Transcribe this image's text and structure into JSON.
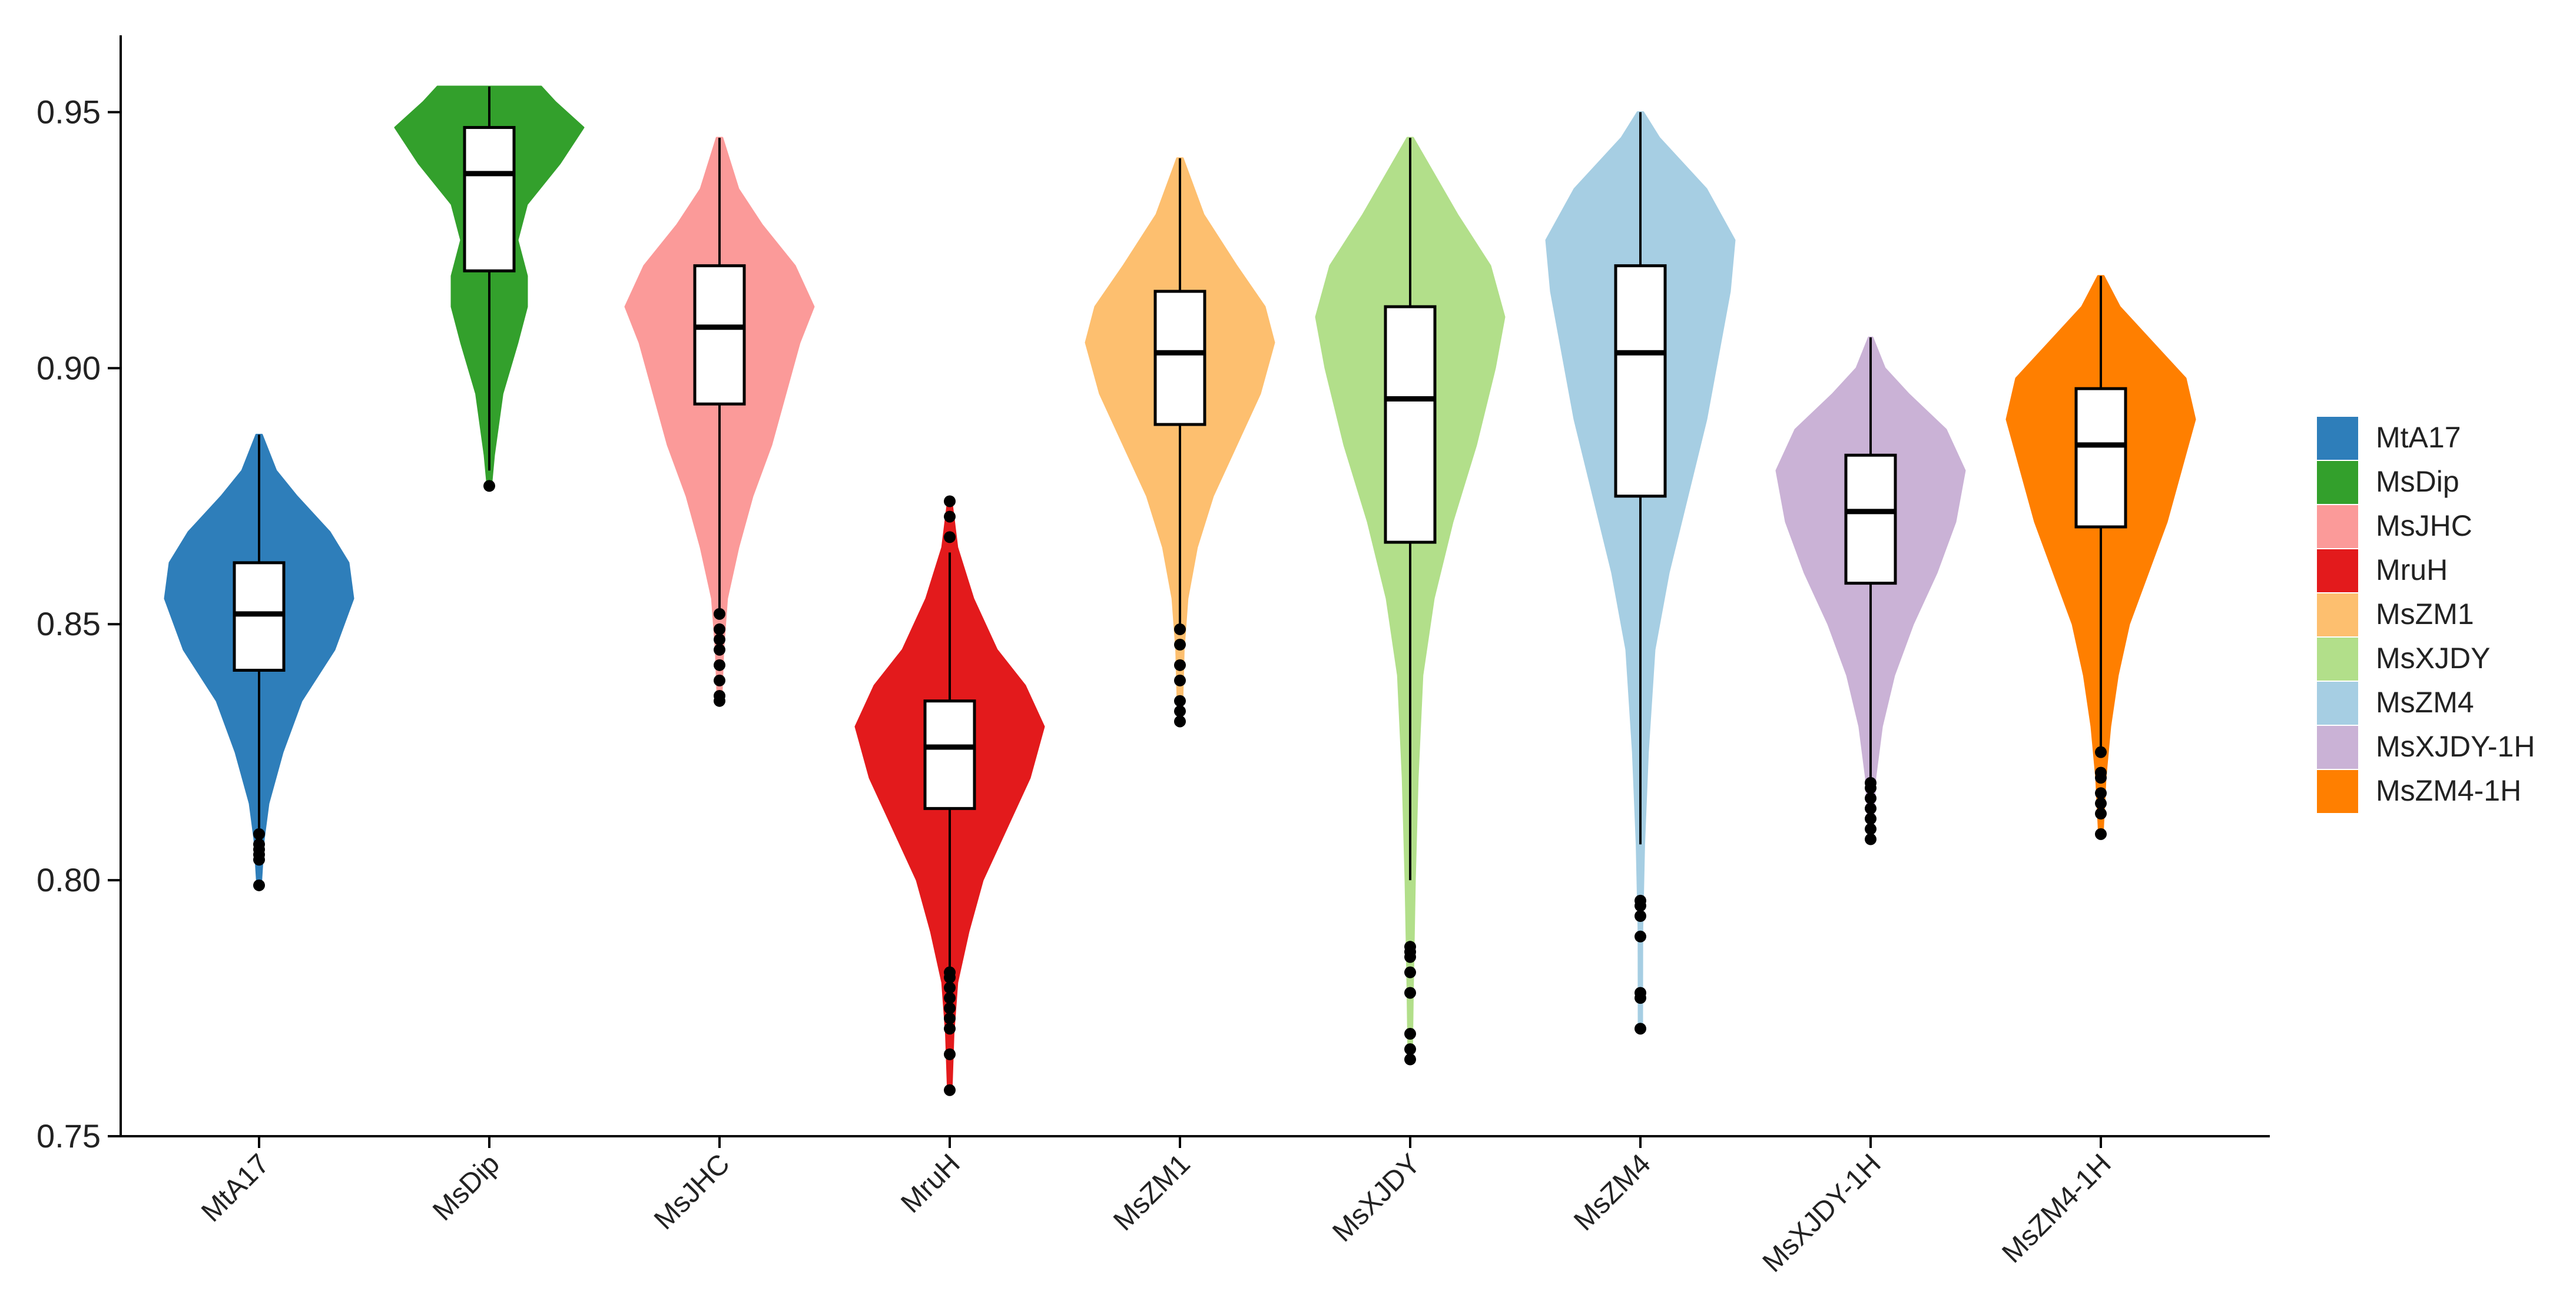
{
  "chart_data": {
    "type": "violin",
    "title": "",
    "xlabel": "",
    "ylabel": "",
    "ylim": [
      0.75,
      0.965
    ],
    "yticks": [
      0.75,
      0.8,
      0.85,
      0.9,
      0.95
    ],
    "ytick_labels": [
      "0.75",
      "0.80",
      "0.85",
      "0.90",
      "0.95"
    ],
    "grid": false,
    "legend_position": "right",
    "categories": [
      "MtA17",
      "MsDip",
      "MsJHC",
      "MruH",
      "MsZM1",
      "MsXJDY",
      "MsZM4",
      "MsXJDY-1H",
      "MsZM4-1H"
    ],
    "series": [
      {
        "name": "MtA17",
        "color": "#2E7EBA",
        "min": 0.799,
        "max": 0.887,
        "q1": 0.841,
        "median": 0.852,
        "q3": 0.862,
        "whisker_low": 0.81,
        "whisker_high": 0.887,
        "outliers": [
          0.799,
          0.804,
          0.805,
          0.806,
          0.807,
          0.809
        ],
        "density": [
          [
            0.799,
            0.02
          ],
          [
            0.808,
            0.05
          ],
          [
            0.815,
            0.1
          ],
          [
            0.825,
            0.25
          ],
          [
            0.835,
            0.45
          ],
          [
            0.845,
            0.8
          ],
          [
            0.855,
            1.0
          ],
          [
            0.862,
            0.95
          ],
          [
            0.868,
            0.75
          ],
          [
            0.875,
            0.4
          ],
          [
            0.88,
            0.18
          ],
          [
            0.887,
            0.03
          ]
        ]
      },
      {
        "name": "MsDip",
        "color": "#33A02C",
        "min": 0.877,
        "max": 0.955,
        "q1": 0.919,
        "median": 0.938,
        "q3": 0.947,
        "whisker_low": 0.88,
        "whisker_high": 0.955,
        "outliers": [
          0.877
        ],
        "density": [
          [
            0.877,
            0.02
          ],
          [
            0.883,
            0.05
          ],
          [
            0.895,
            0.14
          ],
          [
            0.905,
            0.3
          ],
          [
            0.912,
            0.4
          ],
          [
            0.918,
            0.4
          ],
          [
            0.925,
            0.3
          ],
          [
            0.932,
            0.4
          ],
          [
            0.94,
            0.75
          ],
          [
            0.947,
            1.0
          ],
          [
            0.952,
            0.7
          ],
          [
            0.955,
            0.55
          ]
        ]
      },
      {
        "name": "MsJHC",
        "color": "#FB9A99",
        "min": 0.835,
        "max": 0.945,
        "q1": 0.893,
        "median": 0.908,
        "q3": 0.92,
        "whisker_low": 0.853,
        "whisker_high": 0.945,
        "outliers": [
          0.835,
          0.836,
          0.839,
          0.842,
          0.845,
          0.847,
          0.849,
          0.852
        ],
        "density": [
          [
            0.835,
            0.02
          ],
          [
            0.845,
            0.04
          ],
          [
            0.855,
            0.08
          ],
          [
            0.865,
            0.2
          ],
          [
            0.875,
            0.35
          ],
          [
            0.885,
            0.55
          ],
          [
            0.895,
            0.7
          ],
          [
            0.905,
            0.85
          ],
          [
            0.912,
            1.0
          ],
          [
            0.92,
            0.8
          ],
          [
            0.928,
            0.45
          ],
          [
            0.935,
            0.2
          ],
          [
            0.945,
            0.03
          ]
        ]
      },
      {
        "name": "MruH",
        "color": "#E31A1C",
        "min": 0.759,
        "max": 0.874,
        "q1": 0.814,
        "median": 0.826,
        "q3": 0.835,
        "whisker_low": 0.783,
        "whisker_high": 0.864,
        "outliers": [
          0.759,
          0.766,
          0.771,
          0.773,
          0.775,
          0.777,
          0.779,
          0.781,
          0.782,
          0.867,
          0.871,
          0.874
        ],
        "density": [
          [
            0.759,
            0.02
          ],
          [
            0.77,
            0.04
          ],
          [
            0.78,
            0.08
          ],
          [
            0.79,
            0.2
          ],
          [
            0.8,
            0.35
          ],
          [
            0.81,
            0.6
          ],
          [
            0.82,
            0.85
          ],
          [
            0.83,
            1.0
          ],
          [
            0.838,
            0.8
          ],
          [
            0.845,
            0.5
          ],
          [
            0.855,
            0.25
          ],
          [
            0.865,
            0.08
          ],
          [
            0.874,
            0.02
          ]
        ]
      },
      {
        "name": "MsZM1",
        "color": "#FDBF6F",
        "min": 0.831,
        "max": 0.941,
        "q1": 0.889,
        "median": 0.903,
        "q3": 0.915,
        "whisker_low": 0.85,
        "whisker_high": 0.941,
        "outliers": [
          0.831,
          0.833,
          0.835,
          0.839,
          0.842,
          0.846,
          0.849
        ],
        "density": [
          [
            0.831,
            0.02
          ],
          [
            0.845,
            0.04
          ],
          [
            0.855,
            0.08
          ],
          [
            0.865,
            0.18
          ],
          [
            0.875,
            0.35
          ],
          [
            0.885,
            0.6
          ],
          [
            0.895,
            0.85
          ],
          [
            0.905,
            1.0
          ],
          [
            0.912,
            0.9
          ],
          [
            0.92,
            0.6
          ],
          [
            0.93,
            0.25
          ],
          [
            0.941,
            0.03
          ]
        ]
      },
      {
        "name": "MsXJDY",
        "color": "#B2DF8A",
        "min": 0.765,
        "max": 0.945,
        "q1": 0.866,
        "median": 0.894,
        "q3": 0.912,
        "whisker_low": 0.8,
        "whisker_high": 0.945,
        "outliers": [
          0.765,
          0.767,
          0.77,
          0.778,
          0.782,
          0.785,
          0.786,
          0.787
        ],
        "density": [
          [
            0.765,
            0.01
          ],
          [
            0.78,
            0.03
          ],
          [
            0.8,
            0.05
          ],
          [
            0.82,
            0.08
          ],
          [
            0.84,
            0.13
          ],
          [
            0.855,
            0.25
          ],
          [
            0.87,
            0.45
          ],
          [
            0.885,
            0.7
          ],
          [
            0.9,
            0.9
          ],
          [
            0.91,
            1.0
          ],
          [
            0.92,
            0.85
          ],
          [
            0.93,
            0.5
          ],
          [
            0.945,
            0.03
          ]
        ]
      },
      {
        "name": "MsZM4",
        "color": "#A6CEE3",
        "min": 0.771,
        "max": 0.95,
        "q1": 0.875,
        "median": 0.903,
        "q3": 0.92,
        "whisker_low": 0.807,
        "whisker_high": 0.95,
        "outliers": [
          0.771,
          0.777,
          0.778,
          0.789,
          0.793,
          0.795,
          0.796
        ],
        "density": [
          [
            0.771,
            0.01
          ],
          [
            0.79,
            0.02
          ],
          [
            0.807,
            0.04
          ],
          [
            0.825,
            0.08
          ],
          [
            0.845,
            0.15
          ],
          [
            0.86,
            0.3
          ],
          [
            0.875,
            0.5
          ],
          [
            0.89,
            0.7
          ],
          [
            0.905,
            0.85
          ],
          [
            0.915,
            0.95
          ],
          [
            0.925,
            1.0
          ],
          [
            0.935,
            0.7
          ],
          [
            0.945,
            0.2
          ],
          [
            0.95,
            0.03
          ]
        ]
      },
      {
        "name": "MsXJDY-1H",
        "color": "#CAB2D6",
        "min": 0.808,
        "max": 0.906,
        "q1": 0.858,
        "median": 0.872,
        "q3": 0.883,
        "whisker_low": 0.82,
        "whisker_high": 0.906,
        "outliers": [
          0.808,
          0.81,
          0.812,
          0.814,
          0.816,
          0.818,
          0.819
        ],
        "density": [
          [
            0.808,
            0.02
          ],
          [
            0.82,
            0.05
          ],
          [
            0.83,
            0.12
          ],
          [
            0.84,
            0.25
          ],
          [
            0.85,
            0.45
          ],
          [
            0.86,
            0.7
          ],
          [
            0.87,
            0.9
          ],
          [
            0.88,
            1.0
          ],
          [
            0.888,
            0.8
          ],
          [
            0.895,
            0.4
          ],
          [
            0.9,
            0.15
          ],
          [
            0.906,
            0.02
          ]
        ]
      },
      {
        "name": "MsZM4-1H",
        "color": "#FF7F00",
        "min": 0.809,
        "max": 0.918,
        "q1": 0.869,
        "median": 0.885,
        "q3": 0.896,
        "whisker_low": 0.826,
        "whisker_high": 0.918,
        "outliers": [
          0.809,
          0.813,
          0.815,
          0.817,
          0.82,
          0.821,
          0.825
        ],
        "density": [
          [
            0.809,
            0.02
          ],
          [
            0.82,
            0.05
          ],
          [
            0.83,
            0.1
          ],
          [
            0.84,
            0.18
          ],
          [
            0.85,
            0.3
          ],
          [
            0.86,
            0.5
          ],
          [
            0.87,
            0.7
          ],
          [
            0.88,
            0.85
          ],
          [
            0.89,
            1.0
          ],
          [
            0.898,
            0.9
          ],
          [
            0.905,
            0.55
          ],
          [
            0.912,
            0.2
          ],
          [
            0.918,
            0.03
          ]
        ]
      }
    ]
  }
}
